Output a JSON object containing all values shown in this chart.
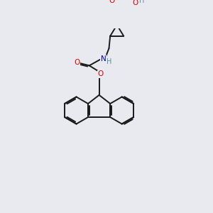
{
  "bg_color": "#e8eaf0",
  "bond_color": "#1a1a1a",
  "atom_colors": {
    "O": "#dd0000",
    "N": "#0000cc",
    "H": "#5090a0",
    "C": "#1a1a1a"
  },
  "figsize": [
    3.0,
    3.0
  ],
  "dpi": 100
}
